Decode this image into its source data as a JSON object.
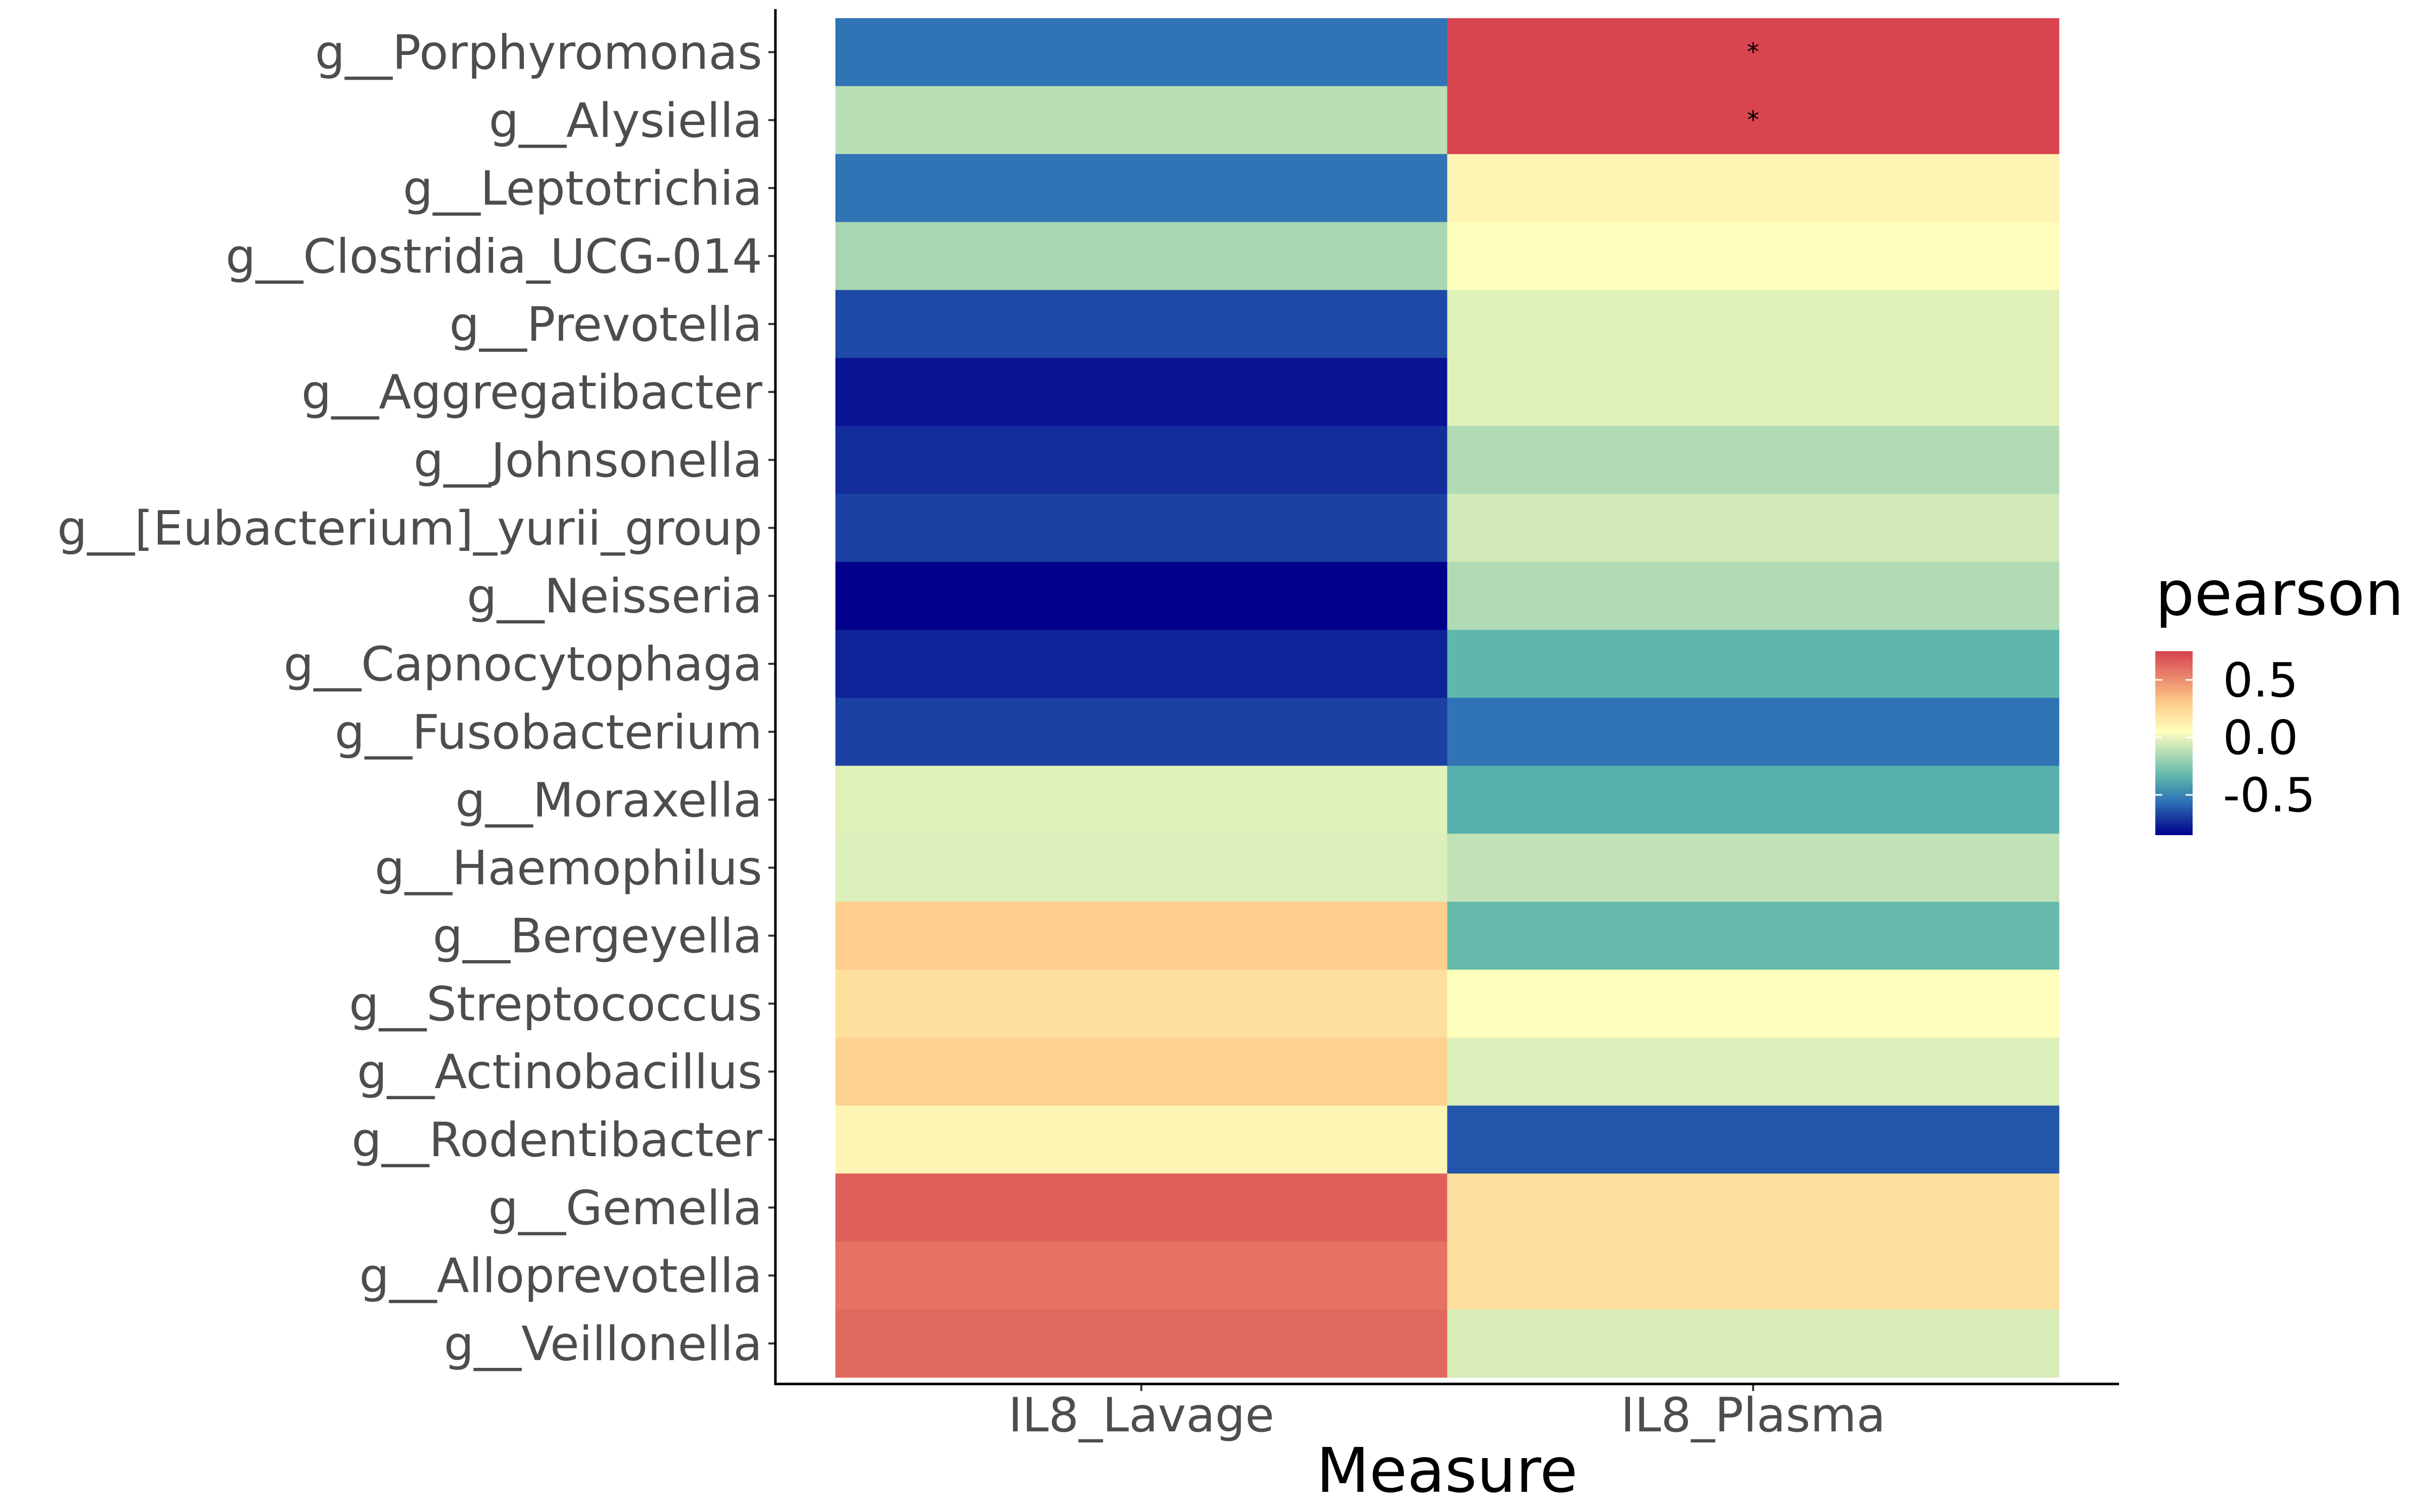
{
  "chart_data": {
    "type": "heatmap",
    "xlabel": "Measure",
    "ylabel": "",
    "x_categories": [
      "IL8_Lavage",
      "IL8_Plasma"
    ],
    "y_categories": [
      "g__Porphyromonas",
      "g__Alysiella",
      "g__Leptotrichia",
      "g__Clostridia_UCG-014",
      "g__Prevotella",
      "g__Aggregatibacter",
      "g__Johnsonella",
      "g__[Eubacterium]_yurii_group",
      "g__Neisseria",
      "g__Capnocytophaga",
      "g__Fusobacterium",
      "g__Moraxella",
      "g__Haemophilus",
      "g__Bergeyella",
      "g__Streptococcus",
      "g__Actinobacillus",
      "g__Rodentibacter",
      "g__Gemella",
      "g__Alloprevotella",
      "g__Veillonella"
    ],
    "values": [
      [
        -0.55,
        0.74
      ],
      [
        -0.12,
        0.74
      ],
      [
        -0.55,
        0.1
      ],
      [
        -0.16,
        0.05
      ],
      [
        -0.66,
        -0.02
      ],
      [
        -0.8,
        -0.02
      ],
      [
        -0.73,
        -0.14
      ],
      [
        -0.68,
        -0.06
      ],
      [
        -0.85,
        -0.14
      ],
      [
        -0.76,
        -0.34
      ],
      [
        -0.68,
        -0.55
      ],
      [
        -0.02,
        -0.36
      ],
      [
        -0.03,
        -0.1
      ],
      [
        0.29,
        -0.32
      ],
      [
        0.2,
        0.05
      ],
      [
        0.27,
        -0.03
      ],
      [
        0.1,
        -0.63
      ],
      [
        0.65,
        0.2
      ],
      [
        0.59,
        0.2
      ],
      [
        0.62,
        -0.04
      ]
    ],
    "annotations": [
      {
        "row": 0,
        "col": 1,
        "text": "*"
      },
      {
        "row": 1,
        "col": 1,
        "text": "*"
      }
    ],
    "legend": {
      "title": "pearson",
      "placement": "right",
      "ticks": [
        0.5,
        0.0,
        -0.5
      ],
      "tick_labels": [
        "0.5",
        "0.0",
        "-0.5"
      ],
      "range": [
        -0.85,
        0.75
      ]
    },
    "colormap": [
      "#00008b",
      "#3074b5",
      "#5ab4ac",
      "#fefebd",
      "#fdcc8a",
      "#d7414e"
    ],
    "colormap_stops": [
      -0.85,
      -0.55,
      -0.35,
      0.05,
      0.3,
      0.75
    ],
    "grid": false
  }
}
